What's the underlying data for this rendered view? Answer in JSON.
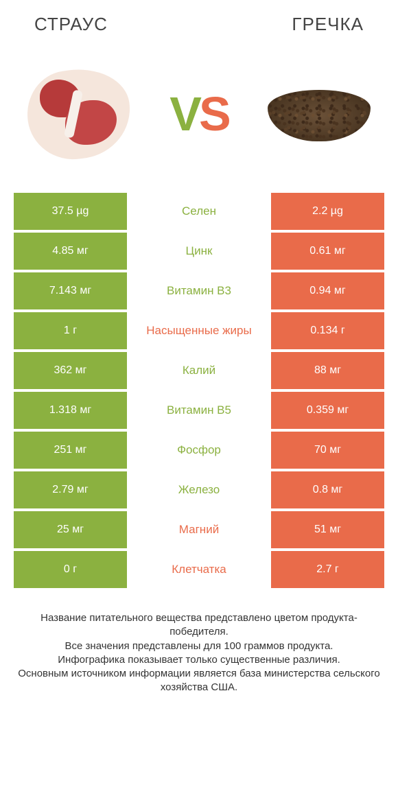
{
  "colors": {
    "green": "#8bb140",
    "orange": "#e96b4a",
    "text_dark": "#444444",
    "bg": "#ffffff"
  },
  "header": {
    "left": "СТРАУС",
    "right": "ГРЕЧКА"
  },
  "vs": {
    "v": "V",
    "s": "S"
  },
  "table": {
    "left_color": "#8bb140",
    "right_color": "#e96b4a",
    "rows": [
      {
        "left": "37.5 µg",
        "label": "Селен",
        "right": "2.2 µg",
        "winner": "left"
      },
      {
        "left": "4.85 мг",
        "label": "Цинк",
        "right": "0.61 мг",
        "winner": "left"
      },
      {
        "left": "7.143 мг",
        "label": "Витамин B3",
        "right": "0.94 мг",
        "winner": "left"
      },
      {
        "left": "1 г",
        "label": "Насыщенные жиры",
        "right": "0.134 г",
        "winner": "right"
      },
      {
        "left": "362 мг",
        "label": "Калий",
        "right": "88 мг",
        "winner": "left"
      },
      {
        "left": "1.318 мг",
        "label": "Витамин B5",
        "right": "0.359 мг",
        "winner": "left"
      },
      {
        "left": "251 мг",
        "label": "Фосфор",
        "right": "70 мг",
        "winner": "left"
      },
      {
        "left": "2.79 мг",
        "label": "Железо",
        "right": "0.8 мг",
        "winner": "left"
      },
      {
        "left": "25 мг",
        "label": "Магний",
        "right": "51 мг",
        "winner": "right"
      },
      {
        "left": "0 г",
        "label": "Клетчатка",
        "right": "2.7 г",
        "winner": "right"
      }
    ]
  },
  "footer": {
    "line1": "Название питательного вещества представлено цветом продукта-победителя.",
    "line2": "Все значения представлены для 100 граммов продукта.",
    "line3": "Инфографика показывает только существенные различия.",
    "line4": "Основным источником информации является база министерства сельского хозяйства США."
  }
}
